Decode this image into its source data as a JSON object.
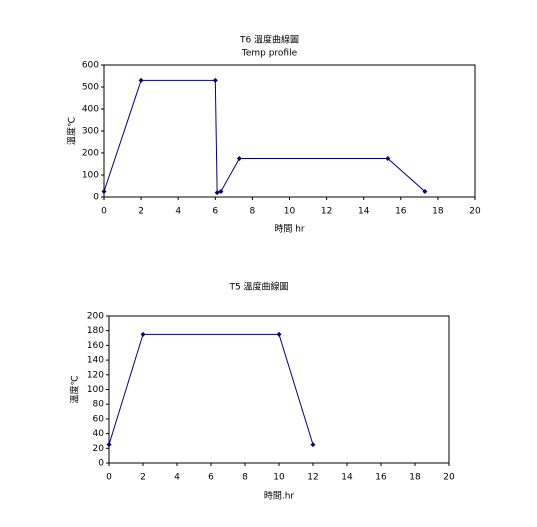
{
  "chart_data": [
    {
      "type": "line",
      "title": "T6 溫度曲線圖",
      "subtitle": "Temp profile",
      "x_label": "時間 hr",
      "y_label": "溫度℃",
      "x": [
        0,
        2,
        6,
        6.1,
        6.3,
        7.3,
        15.3,
        17.3
      ],
      "values": [
        25,
        530,
        530,
        20,
        25,
        175,
        175,
        25
      ],
      "color": "#000080",
      "xlim": [
        0,
        20
      ],
      "xticks": [
        0,
        2,
        4,
        6,
        8,
        10,
        12,
        14,
        16,
        18,
        20
      ],
      "ylim": [
        0,
        600
      ],
      "yticks": [
        0,
        100,
        200,
        300,
        400,
        500,
        600
      ],
      "grid": false
    },
    {
      "type": "line",
      "title": "T5 溫度曲線圖",
      "x_label": "時間.hr",
      "y_label": "溫度℃",
      "x": [
        0,
        2,
        10,
        12
      ],
      "values": [
        25,
        175,
        175,
        25
      ],
      "color": "#000080",
      "xlim": [
        0,
        20
      ],
      "xticks": [
        0,
        2,
        4,
        6,
        8,
        10,
        12,
        14,
        16,
        18,
        20
      ],
      "ylim": [
        0,
        200
      ],
      "yticks": [
        0,
        20,
        40,
        60,
        80,
        100,
        120,
        140,
        160,
        180,
        200
      ],
      "grid": false
    }
  ]
}
